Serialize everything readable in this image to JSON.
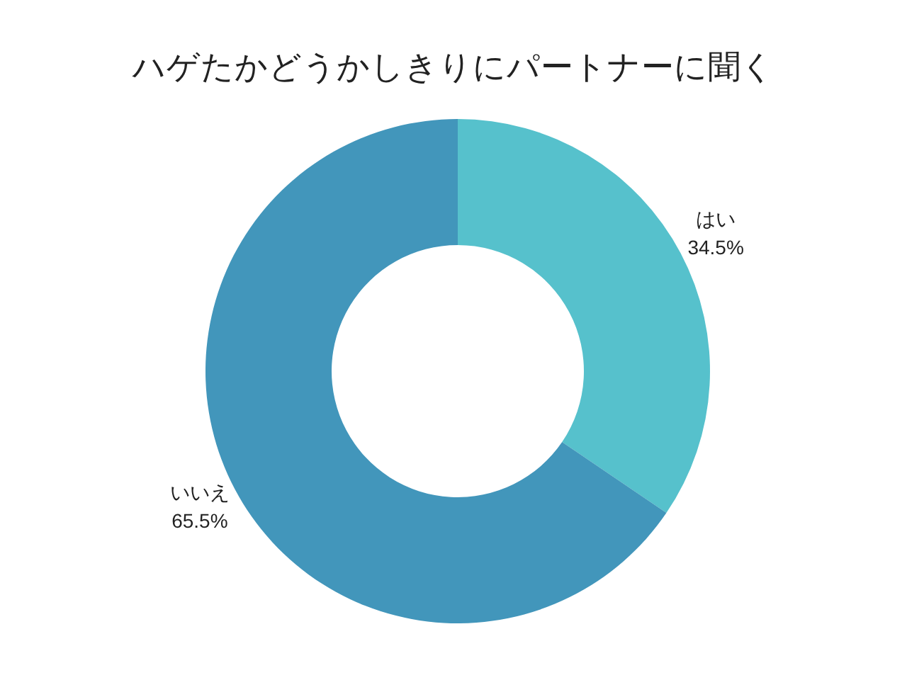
{
  "chart_data": {
    "type": "donut",
    "title": "ハゲたかどうかしきりにパートナーに聞く",
    "categories": [
      "はい",
      "いいえ"
    ],
    "values": [
      34.5,
      65.5
    ],
    "colors": [
      "#56c1cc",
      "#4296bb"
    ],
    "value_labels": [
      "34.5%",
      "65.5%"
    ]
  }
}
